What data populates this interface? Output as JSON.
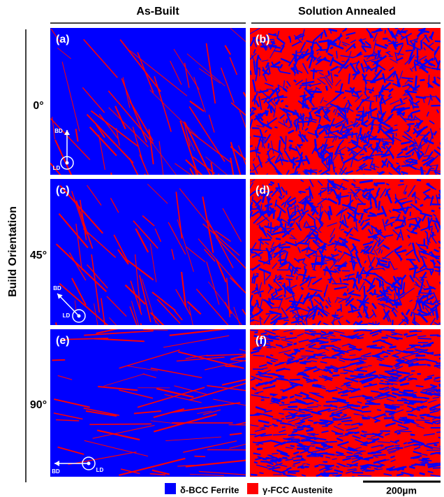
{
  "header": {
    "columns": [
      "As-Built",
      "Solution Annealed"
    ]
  },
  "axis_label": "Build Orientation",
  "rows": [
    "0°",
    "45°",
    "90°"
  ],
  "panels": [
    "(a)",
    "(b)",
    "(c)",
    "(d)",
    "(e)",
    "(f)"
  ],
  "directions": {
    "build": "BD",
    "laser": "LD"
  },
  "legend": [
    "δ-BCC Ferrite",
    "γ-FCC Austenite"
  ],
  "scale_bar": "200µm"
}
